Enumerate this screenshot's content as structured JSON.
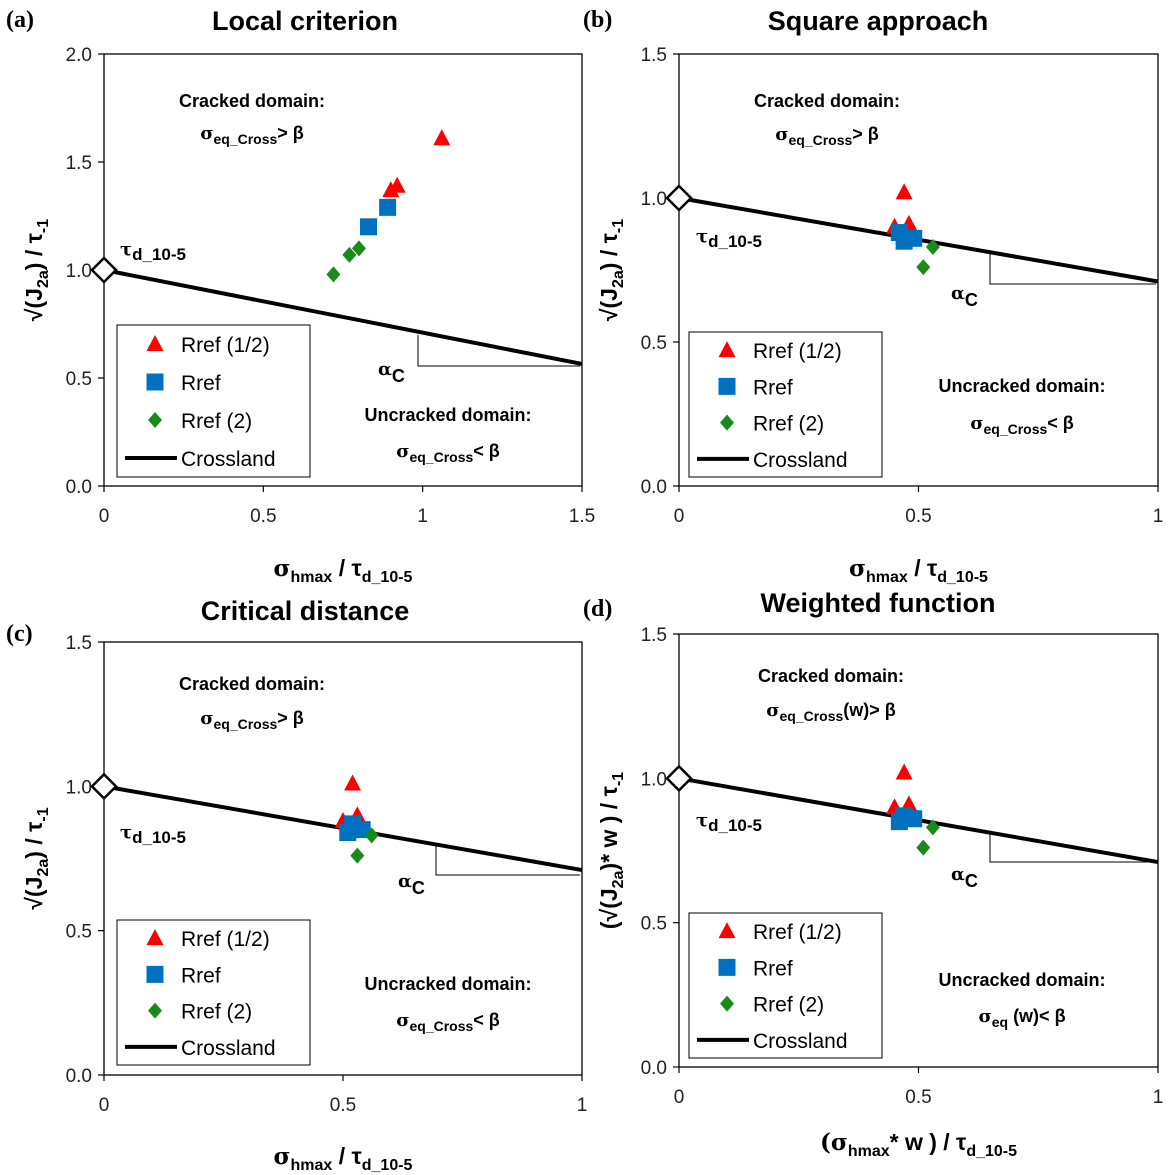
{
  "chart_data": [
    {
      "panel": "(a)",
      "title": "Local criterion",
      "type": "scatter",
      "xlim": [
        0,
        1.5
      ],
      "ylim": [
        0,
        2.0
      ],
      "xticks": [
        "0",
        "0.5",
        "1",
        "1.5"
      ],
      "yticks": [
        "0.0",
        "0.5",
        "1.0",
        "1.5",
        "2.0"
      ],
      "xlabel": {
        "main": "σ",
        "sub": "hmax",
        "mid": " / τ",
        "sub2": "d_10-5"
      },
      "ylabel": {
        "pre": "√(J",
        "sub": "2a",
        "mid": ") / τ",
        "sub2": "-1"
      },
      "cracked": {
        "title": "Cracked domain:",
        "sym": "σ",
        "sub": "eq_Cross",
        "rel": "> β"
      },
      "uncracked": {
        "title": "Uncracked domain:",
        "sym": "σ",
        "sub": "eq_Cross",
        "rel": "< β"
      },
      "tau_label": {
        "sym": "τ",
        "sub": "d_10-5"
      },
      "alpha_label": {
        "sym": "α",
        "sub": "C"
      },
      "crossland": [
        [
          0,
          1.0
        ],
        [
          1.5,
          0.565
        ]
      ],
      "series": [
        {
          "name": "Rref (1/2)",
          "marker": "triangle",
          "color": "#ff0000",
          "points": [
            [
              0.9,
              1.37
            ],
            [
              0.92,
              1.39
            ],
            [
              1.06,
              1.61
            ]
          ]
        },
        {
          "name": "Rref",
          "marker": "square",
          "color": "#0070c0",
          "points": [
            [
              0.83,
              1.2
            ],
            [
              0.89,
              1.29
            ]
          ]
        },
        {
          "name": "Rref (2)",
          "marker": "diamond",
          "color": "#1a8a1a",
          "points": [
            [
              0.72,
              0.98
            ],
            [
              0.77,
              1.07
            ],
            [
              0.8,
              1.1
            ]
          ]
        }
      ],
      "legend": [
        {
          "name": "Rref (1/2)",
          "marker": "triangle",
          "color": "#ff0000"
        },
        {
          "name": "Rref",
          "marker": "square",
          "color": "#0070c0"
        },
        {
          "name": "Rref (2)",
          "marker": "diamond",
          "color": "#1a8a1a"
        },
        {
          "name": "Crossland",
          "marker": "line",
          "color": "#000000"
        }
      ]
    },
    {
      "panel": "(b)",
      "title": "Square approach",
      "type": "scatter",
      "xlim": [
        0,
        1
      ],
      "ylim": [
        0,
        1.5
      ],
      "xticks": [
        "0",
        "0.5",
        "1"
      ],
      "yticks": [
        "0.0",
        "0.5",
        "1.0",
        "1.5"
      ],
      "xlabel": {
        "main": "σ",
        "sub": "hmax",
        "mid": " / τ",
        "sub2": "d_10-5"
      },
      "ylabel": {
        "pre": "√(J",
        "sub": "2a",
        "mid": ") / τ",
        "sub2": "-1"
      },
      "cracked": {
        "title": "Cracked domain:",
        "sym": "σ",
        "sub": "eq_Cross",
        "rel": "> β"
      },
      "uncracked": {
        "title": "Uncracked domain:",
        "sym": "σ",
        "sub": "eq_Cross",
        "rel": "< β"
      },
      "tau_label": {
        "sym": "τ",
        "sub": "d_10-5"
      },
      "alpha_label": {
        "sym": "α",
        "sub": "C"
      },
      "crossland": [
        [
          0,
          1.0
        ],
        [
          1.0,
          0.71
        ]
      ],
      "series": [
        {
          "name": "Rref (1/2)",
          "marker": "triangle",
          "color": "#ff0000",
          "points": [
            [
              0.45,
              0.9
            ],
            [
              0.47,
              1.02
            ],
            [
              0.48,
              0.91
            ]
          ]
        },
        {
          "name": "Rref",
          "marker": "square",
          "color": "#0070c0",
          "points": [
            [
              0.46,
              0.88
            ],
            [
              0.47,
              0.85
            ],
            [
              0.49,
              0.86
            ]
          ]
        },
        {
          "name": "Rref (2)",
          "marker": "diamond",
          "color": "#1a8a1a",
          "points": [
            [
              0.51,
              0.76
            ],
            [
              0.53,
              0.83
            ]
          ]
        }
      ],
      "legend": [
        {
          "name": "Rref (1/2)",
          "marker": "triangle",
          "color": "#ff0000"
        },
        {
          "name": "Rref",
          "marker": "square",
          "color": "#0070c0"
        },
        {
          "name": "Rref (2)",
          "marker": "diamond",
          "color": "#1a8a1a"
        },
        {
          "name": "Crossland",
          "marker": "line",
          "color": "#000000"
        }
      ]
    },
    {
      "panel": "(c)",
      "title": "Critical distance",
      "type": "scatter",
      "xlim": [
        0,
        1
      ],
      "ylim": [
        0,
        1.5
      ],
      "xticks": [
        "0",
        "0.5",
        "1"
      ],
      "yticks": [
        "0.0",
        "0.5",
        "1.0",
        "1.5"
      ],
      "xlabel": {
        "main": "σ",
        "sub": "hmax",
        "mid": " / τ",
        "sub2": "d_10-5"
      },
      "ylabel": {
        "pre": "√(J",
        "sub": "2a",
        "mid": ") / τ",
        "sub2": "-1"
      },
      "cracked": {
        "title": "Cracked domain:",
        "sym": "σ",
        "sub": "eq_Cross",
        "rel": "> β"
      },
      "uncracked": {
        "title": "Uncracked domain:",
        "sym": "σ",
        "sub": "eq_Cross",
        "rel": "< β"
      },
      "tau_label": {
        "sym": "τ",
        "sub": "d_10-5"
      },
      "alpha_label": {
        "sym": "α",
        "sub": "C"
      },
      "crossland": [
        [
          0,
          1.0
        ],
        [
          1.0,
          0.71
        ]
      ],
      "series": [
        {
          "name": "Rref (1/2)",
          "marker": "triangle",
          "color": "#ff0000",
          "points": [
            [
              0.5,
              0.88
            ],
            [
              0.52,
              1.01
            ],
            [
              0.53,
              0.9
            ]
          ]
        },
        {
          "name": "Rref",
          "marker": "square",
          "color": "#0070c0",
          "points": [
            [
              0.51,
              0.84
            ],
            [
              0.52,
              0.87
            ],
            [
              0.54,
              0.85
            ]
          ]
        },
        {
          "name": "Rref (2)",
          "marker": "diamond",
          "color": "#1a8a1a",
          "points": [
            [
              0.53,
              0.76
            ],
            [
              0.56,
              0.83
            ]
          ]
        }
      ],
      "legend": [
        {
          "name": "Rref (1/2)",
          "marker": "triangle",
          "color": "#ff0000"
        },
        {
          "name": "Rref",
          "marker": "square",
          "color": "#0070c0"
        },
        {
          "name": "Rref (2)",
          "marker": "diamond",
          "color": "#1a8a1a"
        },
        {
          "name": "Crossland",
          "marker": "line",
          "color": "#000000"
        }
      ]
    },
    {
      "panel": "(d)",
      "title": "Weighted function",
      "type": "scatter",
      "xlim": [
        0,
        1
      ],
      "ylim": [
        0,
        1.5
      ],
      "xticks": [
        "0",
        "0.5",
        "1"
      ],
      "yticks": [
        "0.0",
        "0.5",
        "1.0",
        "1.5"
      ],
      "xlabel": {
        "pre": "(σ",
        "sub": "hmax",
        "mid": "* w ) / τ",
        "sub2": "d_10-5"
      },
      "ylabel": {
        "pre": "(√(J",
        "sub": "2a",
        "mid": ")* w ) / τ",
        "sub2": "-1"
      },
      "cracked": {
        "title": "Cracked domain:",
        "sym": "σ",
        "sub": "eq_Cross",
        "rel": "(w)> β"
      },
      "uncracked": {
        "title": "Uncracked domain:",
        "sym": "σ",
        "sub": "eq",
        "rel": " (w)< β"
      },
      "tau_label": {
        "sym": "τ",
        "sub": "d_10-5"
      },
      "alpha_label": {
        "sym": "α",
        "sub": "C"
      },
      "crossland": [
        [
          0,
          1.0
        ],
        [
          1.0,
          0.71
        ]
      ],
      "series": [
        {
          "name": "Rref (1/2)",
          "marker": "triangle",
          "color": "#ff0000",
          "points": [
            [
              0.45,
              0.9
            ],
            [
              0.47,
              1.02
            ],
            [
              0.48,
              0.91
            ]
          ]
        },
        {
          "name": "Rref",
          "marker": "square",
          "color": "#0070c0",
          "points": [
            [
              0.46,
              0.85
            ],
            [
              0.47,
              0.87
            ],
            [
              0.49,
              0.86
            ]
          ]
        },
        {
          "name": "Rref (2)",
          "marker": "diamond",
          "color": "#1a8a1a",
          "points": [
            [
              0.51,
              0.76
            ],
            [
              0.53,
              0.83
            ]
          ]
        }
      ],
      "legend": [
        {
          "name": "Rref (1/2)",
          "marker": "triangle",
          "color": "#ff0000"
        },
        {
          "name": "Rref",
          "marker": "square",
          "color": "#0070c0"
        },
        {
          "name": "Rref (2)",
          "marker": "diamond",
          "color": "#1a8a1a"
        },
        {
          "name": "Crossland",
          "marker": "line",
          "color": "#000000"
        }
      ]
    }
  ]
}
